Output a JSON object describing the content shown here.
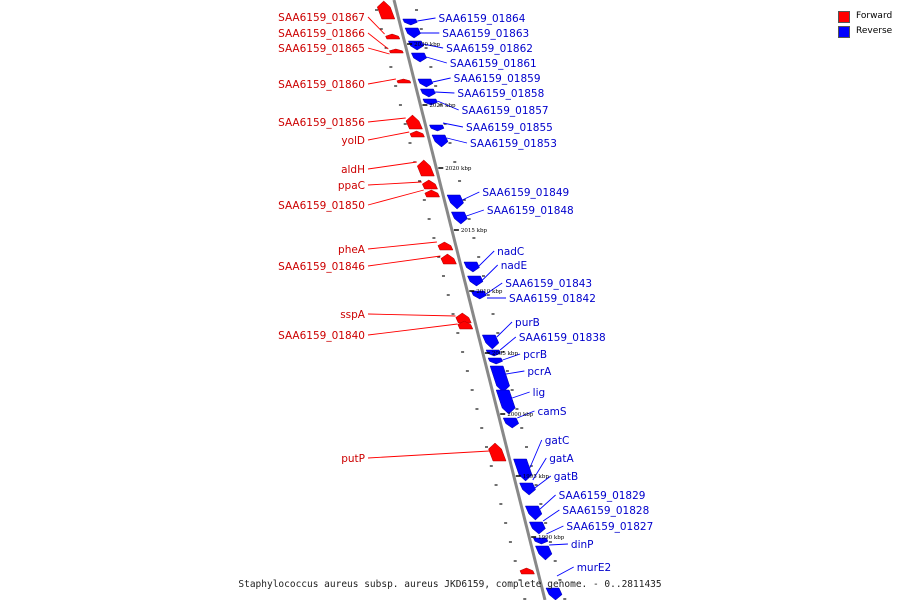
{
  "legend": {
    "forward_label": "Forward",
    "reverse_label": "Reverse",
    "forward_color": "#ff0000",
    "reverse_color": "#0000ff"
  },
  "caption": "Staphylococcus aureus subsp. aureus JKD6159, complete genome. - 0..2811435",
  "colors": {
    "backbone": "#888888",
    "tick": "#111111",
    "leader": "#888888"
  },
  "scale_labels": [
    "2030 kbp",
    "2025 kbp",
    "2020 kbp",
    "2015 kbp",
    "2010 kbp",
    "2005 kbp",
    "2000 kbp",
    "1995 kbp",
    "1990 kbp"
  ],
  "forward_genes": [
    "SAA6159_01867",
    "SAA6159_01866",
    "SAA6159_01865",
    "SAA6159_01860",
    "SAA6159_01856",
    "yolD",
    "aldH",
    "ppaC",
    "SAA6159_01850",
    "pheA",
    "SAA6159_01846",
    "sspA",
    "SAA6159_01840",
    "putP"
  ],
  "reverse_genes": [
    "SAA6159_01864",
    "SAA6159_01863",
    "SAA6159_01862",
    "SAA6159_01861",
    "SAA6159_01859",
    "SAA6159_01858",
    "SAA6159_01857",
    "SAA6159_01855",
    "SAA6159_01853",
    "SAA6159_01849",
    "SAA6159_01848",
    "nadC",
    "nadE",
    "SAA6159_01843",
    "SAA6159_01842",
    "purB",
    "SAA6159_01838",
    "pcrB",
    "pcrA",
    "lig",
    "camS",
    "gatC",
    "gatA",
    "gatB",
    "SAA6159_01829",
    "SAA6159_01828",
    "SAA6159_01827",
    "dinP",
    "murE2"
  ]
}
